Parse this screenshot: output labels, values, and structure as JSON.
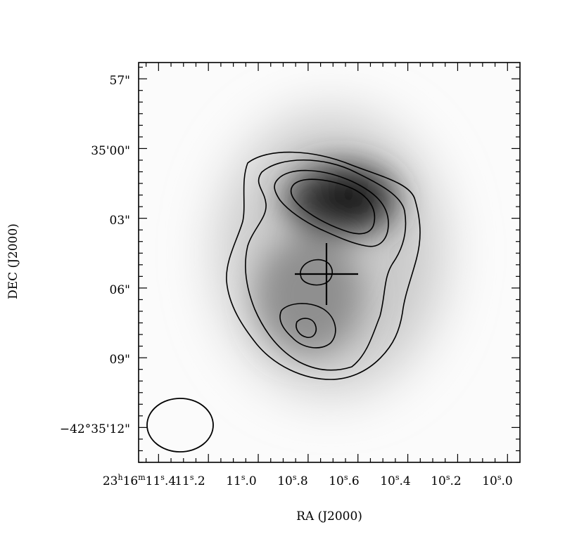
{
  "chart_data": {
    "type": "heatmap",
    "title": "",
    "xlabel": "RA (J2000)",
    "ylabel": "DEC (J2000)",
    "x_ticks": [
      {
        "label": "23h16m11s.4",
        "value_s": 11.4
      },
      {
        "label": "11s.2",
        "value_s": 11.2
      },
      {
        "label": "11s.0",
        "value_s": 11.0
      },
      {
        "label": "10s.8",
        "value_s": 10.8
      },
      {
        "label": "10s.6",
        "value_s": 10.6
      },
      {
        "label": "10s.4",
        "value_s": 10.4
      },
      {
        "label": "10s.2",
        "value_s": 10.2
      },
      {
        "label": "10s.0",
        "value_s": 10.0
      }
    ],
    "y_ticks": [
      {
        "label": "57\"",
        "offset_arcsec": -3
      },
      {
        "label": "35'00\"",
        "offset_arcsec": 0
      },
      {
        "label": "03\"",
        "offset_arcsec": 3
      },
      {
        "label": "06\"",
        "offset_arcsec": 6
      },
      {
        "label": "09\"",
        "offset_arcsec": 9
      },
      {
        "label": "-42°35'12\"",
        "offset_arcsec": 12
      }
    ],
    "xlim_s": [
      11.48,
      9.95
    ],
    "ylim_offset_arcsec": [
      -3.7,
      13.5
    ],
    "grayscale_peak": {
      "ra_s": 10.6,
      "dec_offset_arcsec": 1.8
    },
    "contour_levels": 4,
    "cross_marker": {
      "ra_s": 10.7,
      "dec_offset_arcsec": 5.3
    },
    "beam": {
      "ra_s": 11.28,
      "dec_offset_arcsec": 12.0
    }
  },
  "text": {
    "xlabel": "RA (J2000)",
    "ylabel": "DEC (J2000)",
    "ytick_57": "57\"",
    "ytick_3500": "35'00\"",
    "ytick_03": "03\"",
    "ytick_06": "06\"",
    "ytick_09": "09\"",
    "ytick_12_main": "−42°35'12\""
  },
  "colors": {
    "ink": "#000000",
    "background": "#ffffff"
  }
}
